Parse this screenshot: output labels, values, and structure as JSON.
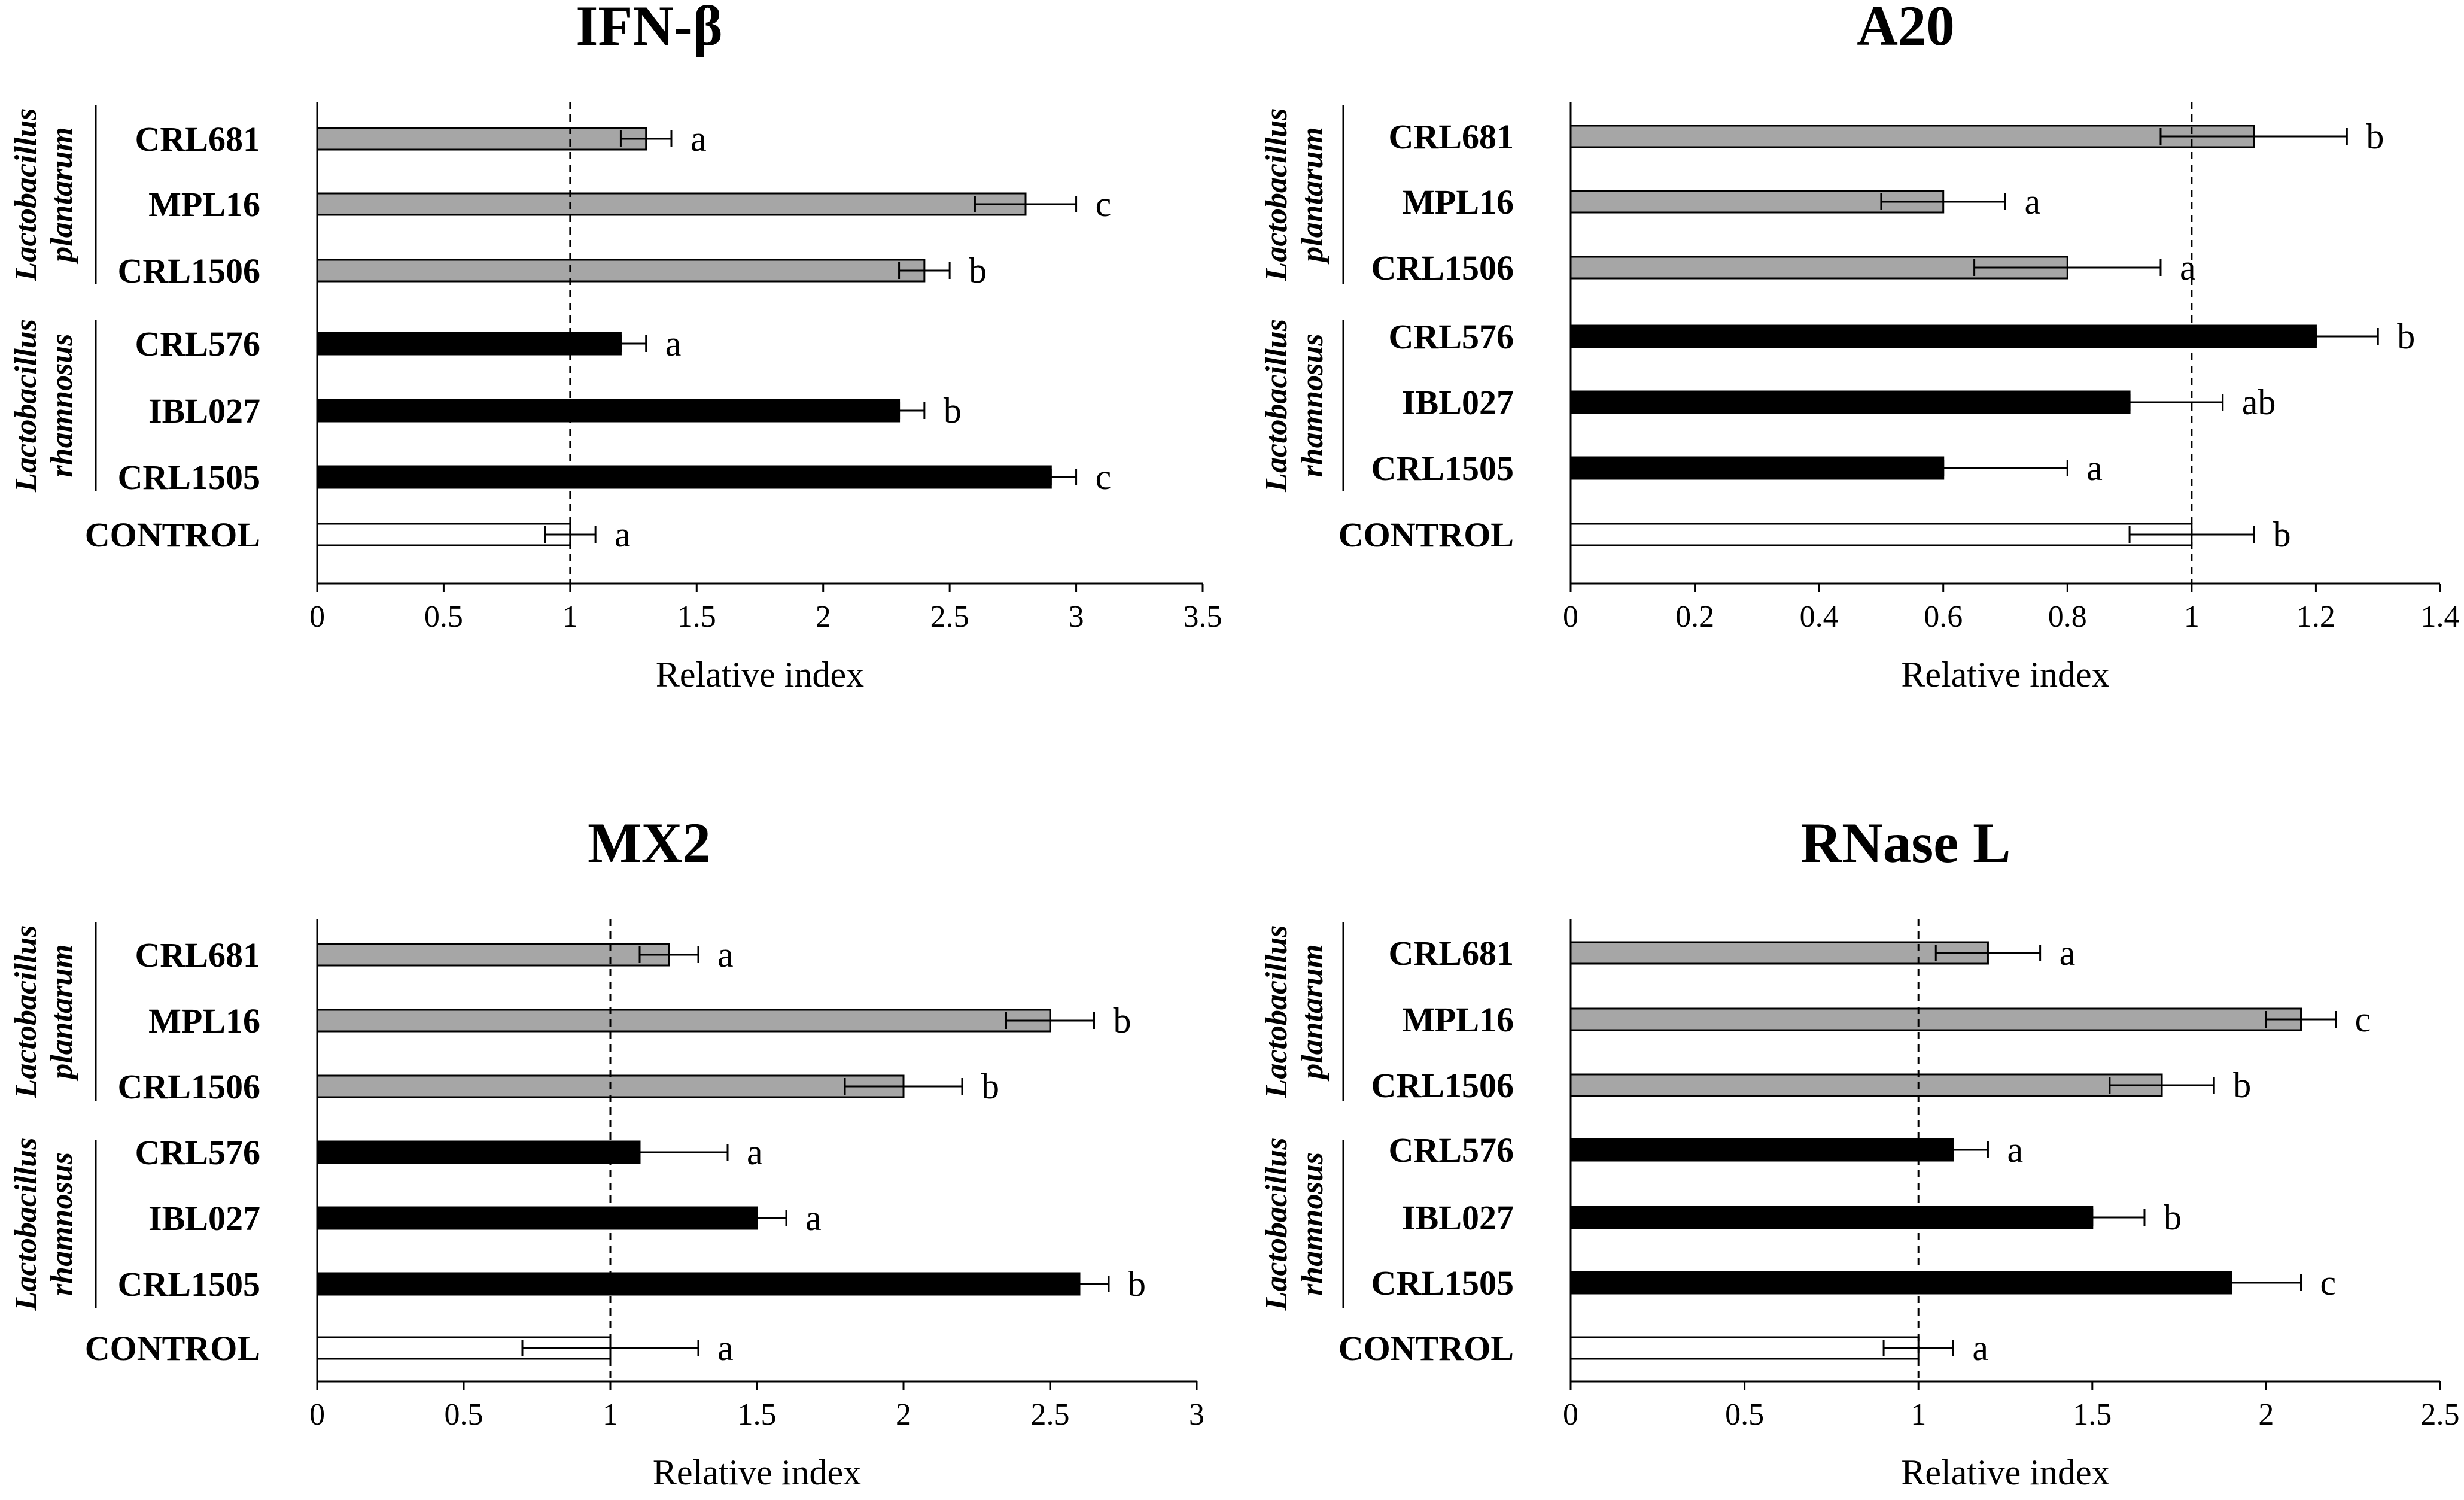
{
  "chart_data": [
    {
      "type": "bar",
      "orientation": "horizontal",
      "title": "IFN-β",
      "xlabel": "Relative index",
      "xlim": [
        0,
        3.5
      ],
      "xticks": [
        "0",
        "0.5",
        "1",
        "1.5",
        "2",
        "2.5",
        "3",
        "3.5"
      ],
      "reference_line": 1,
      "groups": [
        {
          "name_line1": "Lactobacillus",
          "name_line2": "plantarum",
          "categories": [
            "CRL681",
            "MPL16",
            "CRL1506"
          ]
        },
        {
          "name_line1": "Lactobacillus",
          "name_line2": "rhamnosus",
          "categories": [
            "CRL576",
            "IBL027",
            "CRL1505"
          ]
        }
      ],
      "categories": [
        "CRL681",
        "MPL16",
        "CRL1506",
        "CRL576",
        "IBL027",
        "CRL1505",
        "CONTROL"
      ],
      "values": [
        1.3,
        2.8,
        2.4,
        1.2,
        2.3,
        2.9,
        1.0
      ],
      "error_low": [
        1.2,
        2.6,
        2.3,
        1.2,
        2.3,
        2.9,
        0.9
      ],
      "error_high": [
        1.4,
        3.0,
        2.5,
        1.3,
        2.4,
        3.0,
        1.1
      ],
      "letters": [
        "a",
        "c",
        "b",
        "a",
        "b",
        "c",
        "a"
      ],
      "bar_colors": [
        "#a6a6a6",
        "#a6a6a6",
        "#a6a6a6",
        "#000000",
        "#000000",
        "#000000",
        "#ffffff"
      ]
    },
    {
      "type": "bar",
      "orientation": "horizontal",
      "title": "A20",
      "xlabel": "Relative index",
      "xlim": [
        0,
        1.4
      ],
      "xticks": [
        "0",
        "0.2",
        "0.4",
        "0.6",
        "0.8",
        "1",
        "1.2",
        "1.4"
      ],
      "reference_line": 1,
      "groups": [
        {
          "name_line1": "Lactobacillus",
          "name_line2": "plantarum",
          "categories": [
            "CRL681",
            "MPL16",
            "CRL1506"
          ]
        },
        {
          "name_line1": "Lactobacillus",
          "name_line2": "rhamnosus",
          "categories": [
            "CRL576",
            "IBL027",
            "CRL1505"
          ]
        }
      ],
      "categories": [
        "CRL681",
        "MPL16",
        "CRL1506",
        "CRL576",
        "IBL027",
        "CRL1505",
        "CONTROL"
      ],
      "values": [
        1.1,
        0.6,
        0.8,
        1.2,
        0.9,
        0.6,
        1.0
      ],
      "error_low": [
        0.95,
        0.5,
        0.65,
        1.2,
        0.9,
        0.6,
        0.9
      ],
      "error_high": [
        1.25,
        0.7,
        0.95,
        1.3,
        1.05,
        0.8,
        1.1
      ],
      "letters": [
        "b",
        "a",
        "a",
        "b",
        "ab",
        "a",
        "b"
      ],
      "bar_colors": [
        "#a6a6a6",
        "#a6a6a6",
        "#a6a6a6",
        "#000000",
        "#000000",
        "#000000",
        "#ffffff"
      ]
    },
    {
      "type": "bar",
      "orientation": "horizontal",
      "title": "MX2",
      "xlabel": "Relative index",
      "xlim": [
        0,
        3
      ],
      "xticks": [
        "0",
        "0.5",
        "1",
        "1.5",
        "2",
        "2.5",
        "3"
      ],
      "reference_line": 1,
      "groups": [
        {
          "name_line1": "Lactobacillus",
          "name_line2": "plantarum",
          "categories": [
            "CRL681",
            "MPL16",
            "CRL1506"
          ]
        },
        {
          "name_line1": "Lactobacillus",
          "name_line2": "rhamnosus",
          "categories": [
            "CRL576",
            "IBL027",
            "CRL1505"
          ]
        }
      ],
      "categories": [
        "CRL681",
        "MPL16",
        "CRL1506",
        "CRL576",
        "IBL027",
        "CRL1505",
        "CONTROL"
      ],
      "values": [
        1.2,
        2.5,
        2.0,
        1.1,
        1.5,
        2.6,
        1.0
      ],
      "error_low": [
        1.1,
        2.35,
        1.8,
        1.1,
        1.5,
        2.6,
        0.7
      ],
      "error_high": [
        1.3,
        2.65,
        2.2,
        1.4,
        1.6,
        2.7,
        1.3
      ],
      "letters": [
        "a",
        "b",
        "b",
        "a",
        "a",
        "b",
        "a"
      ],
      "bar_colors": [
        "#a6a6a6",
        "#a6a6a6",
        "#a6a6a6",
        "#000000",
        "#000000",
        "#000000",
        "#ffffff"
      ]
    },
    {
      "type": "bar",
      "orientation": "horizontal",
      "title": "RNase L",
      "xlabel": "Relative index",
      "xlim": [
        0,
        2.5
      ],
      "xticks": [
        "0",
        "0.5",
        "1",
        "1.5",
        "2",
        "2.5"
      ],
      "reference_line": 1,
      "groups": [
        {
          "name_line1": "Lactobacillus",
          "name_line2": "plantarum",
          "categories": [
            "CRL681",
            "MPL16",
            "CRL1506"
          ]
        },
        {
          "name_line1": "Lactobacillus",
          "name_line2": "rhamnosus",
          "categories": [
            "CRL576",
            "IBL027",
            "CRL1505"
          ]
        }
      ],
      "categories": [
        "CRL681",
        "MPL16",
        "CRL1506",
        "CRL576",
        "IBL027",
        "CRL1505",
        "CONTROL"
      ],
      "values": [
        1.2,
        2.1,
        1.7,
        1.1,
        1.5,
        1.9,
        1.0
      ],
      "error_low": [
        1.05,
        2.0,
        1.55,
        1.1,
        1.5,
        1.9,
        0.9
      ],
      "error_high": [
        1.35,
        2.2,
        1.85,
        1.2,
        1.65,
        2.1,
        1.1
      ],
      "letters": [
        "a",
        "c",
        "b",
        "a",
        "b",
        "c",
        "a"
      ],
      "bar_colors": [
        "#a6a6a6",
        "#a6a6a6",
        "#a6a6a6",
        "#000000",
        "#000000",
        "#000000",
        "#ffffff"
      ]
    }
  ]
}
